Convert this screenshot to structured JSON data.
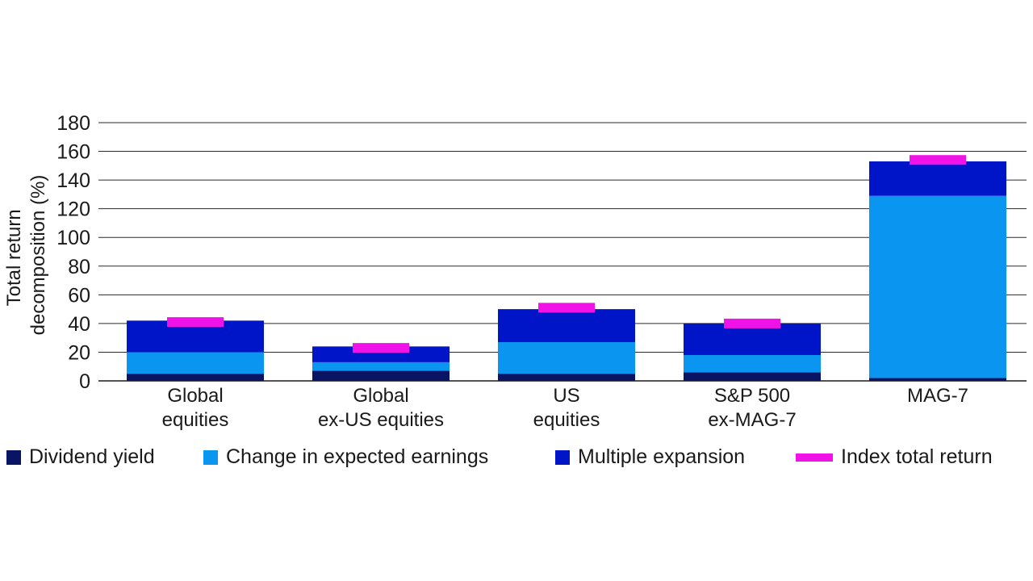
{
  "chart_data": {
    "type": "bar",
    "stacked": true,
    "categories": [
      [
        "Global",
        "equities"
      ],
      [
        "Global",
        "ex-US equities"
      ],
      [
        "US",
        "equities"
      ],
      [
        "S&P 500",
        "ex-MAG-7"
      ],
      [
        "MAG-7"
      ]
    ],
    "series": [
      {
        "name": "Dividend yield",
        "color": "#0a1464",
        "values": [
          5,
          7,
          5,
          6,
          2
        ]
      },
      {
        "name": "Change in expected earnings",
        "color": "#0a96f0",
        "values": [
          15,
          6,
          22,
          12,
          127
        ]
      },
      {
        "name": "Multiple expansion",
        "color": "#0014c8",
        "values": [
          22,
          11,
          23,
          22,
          24
        ]
      }
    ],
    "total_return": {
      "name": "Index total return",
      "color": "#f012e6",
      "values": [
        41,
        23,
        51,
        40,
        154
      ]
    },
    "ylabel_lines": [
      "Total return",
      "decomposition (%)"
    ],
    "ylim": [
      0,
      180
    ],
    "yticks": [
      0,
      20,
      40,
      60,
      80,
      100,
      120,
      140,
      160,
      180
    ],
    "grid": true,
    "legend_position": "bottom"
  }
}
